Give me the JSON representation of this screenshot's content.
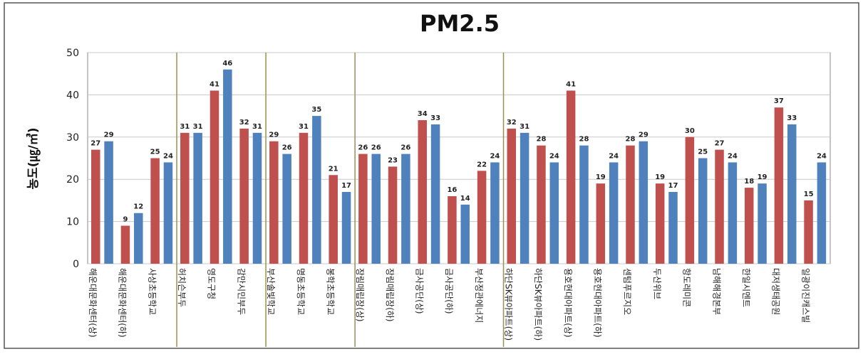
{
  "chart_data": {
    "type": "bar",
    "title": "PM2.5",
    "ylabel": "농도(㎍/㎥)",
    "categories": [
      "해운대문화센터(상)",
      "해운대문화센터(하)",
      "사상초등학교",
      "허치슨부두",
      "영도구청",
      "감만시민부두",
      "부산솔빛학교",
      "명동초등학교",
      "봉학초등학교",
      "장림매립장(상)",
      "장림매립장(하)",
      "금사공단(상)",
      "금사공단(하)",
      "부산정관에너지",
      "하단SK뷰아파트(상)",
      "하단SK뷰아파트(하)",
      "용호현대아파트(상)",
      "용호현대아파트(하)",
      "센텀푸르지오",
      "두산위브",
      "항도레미콘",
      "남해해경본부",
      "한일시멘트",
      "대저생태공원",
      "일광이진캐스빌"
    ],
    "series": [
      {
        "color": "#c0504d",
        "values": [
          27,
          9,
          25,
          31,
          41,
          32,
          29,
          31,
          21,
          26,
          23,
          34,
          16,
          22,
          32,
          28,
          41,
          19,
          28,
          19,
          30,
          27,
          18,
          37,
          15
        ]
      },
      {
        "color": "#4f81bd",
        "values": [
          29,
          12,
          24,
          31,
          46,
          31,
          26,
          35,
          17,
          26,
          26,
          33,
          14,
          24,
          31,
          24,
          28,
          24,
          29,
          17,
          25,
          24,
          19,
          33,
          24
        ]
      }
    ],
    "ylim": [
      0,
      50
    ],
    "yticks": [
      0,
      10,
      20,
      30,
      40,
      50
    ],
    "grid": true
  }
}
